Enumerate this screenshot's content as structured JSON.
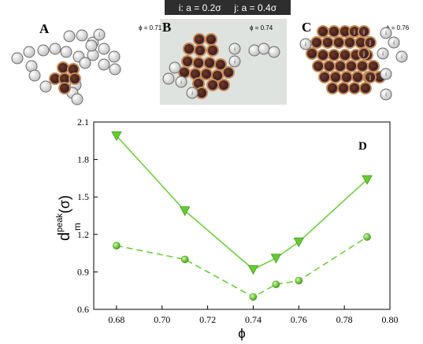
{
  "legend": {
    "text": "i: a = 0.2σ     j: a = 0.4σ"
  },
  "panels": [
    {
      "letter": "A",
      "phi": "ϕ = 0.71"
    },
    {
      "letter": "B",
      "phi": "ϕ = 0.74"
    },
    {
      "letter": "C",
      "phi": "ϕ = 0.76"
    }
  ],
  "bead_labels": {
    "i": "i",
    "j": "j"
  },
  "colors": {
    "bead_i_fill": "#e6e6e6",
    "bead_j_fill": "#8a4a2a",
    "panel_b_bg": "#dfe3df",
    "series_color": "#66cc33"
  },
  "chart_data": {
    "type": "line",
    "panel_letter": "D",
    "xlabel": "ϕ",
    "ylabel": {
      "main": "d",
      "sub": "m",
      "sup": "peak",
      "unit": "(σ)"
    },
    "xlim": [
      0.67,
      0.8
    ],
    "ylim": [
      0.6,
      2.1
    ],
    "xticks": [
      "0.68",
      "0.70",
      "0.72",
      "0.74",
      "0.76",
      "0.78",
      "0.80"
    ],
    "yticks": [
      "0.6",
      "0.9",
      "1.2",
      "1.5",
      "1.8",
      "2.1"
    ],
    "series": [
      {
        "style": "solid",
        "marker": "triangle-down",
        "x": [
          0.68,
          0.71,
          0.74,
          0.75,
          0.76,
          0.79
        ],
        "y": [
          1.99,
          1.39,
          0.92,
          1.01,
          1.14,
          1.64
        ]
      },
      {
        "style": "dashed",
        "marker": "sphere",
        "x": [
          0.68,
          0.71,
          0.74,
          0.75,
          0.76,
          0.79
        ],
        "y": [
          1.11,
          1.0,
          0.7,
          0.8,
          0.83,
          1.18
        ]
      }
    ],
    "grid": false
  }
}
